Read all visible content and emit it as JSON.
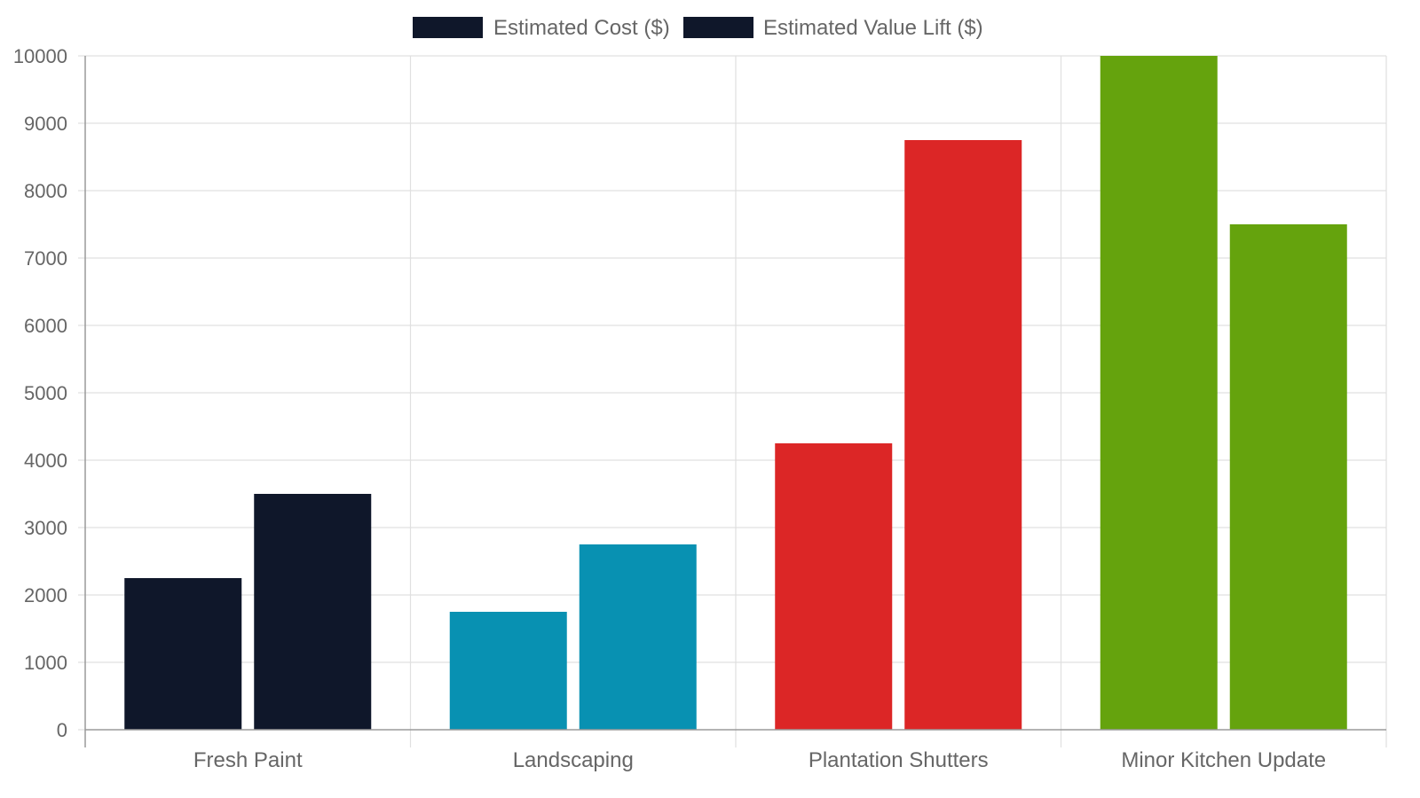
{
  "chart_data": {
    "type": "bar",
    "categories": [
      "Fresh Paint",
      "Landscaping",
      "Plantation Shutters",
      "Minor Kitchen Update"
    ],
    "series": [
      {
        "name": "Estimated Cost ($)",
        "values": [
          2250,
          1750,
          4250,
          10000
        ]
      },
      {
        "name": "Estimated Value Lift ($)",
        "values": [
          3500,
          2750,
          8750,
          7500
        ]
      }
    ],
    "category_colors": [
      "#0f172a",
      "#0891b2",
      "#dc2626",
      "#65a30d"
    ],
    "legend_color": "#0f172a",
    "ylim": [
      0,
      10000
    ],
    "yticks": [
      0,
      1000,
      2000,
      3000,
      4000,
      5000,
      6000,
      7000,
      8000,
      9000,
      10000
    ],
    "grid": true,
    "legend_position": "top-center",
    "title": "",
    "xlabel": "",
    "ylabel": ""
  }
}
